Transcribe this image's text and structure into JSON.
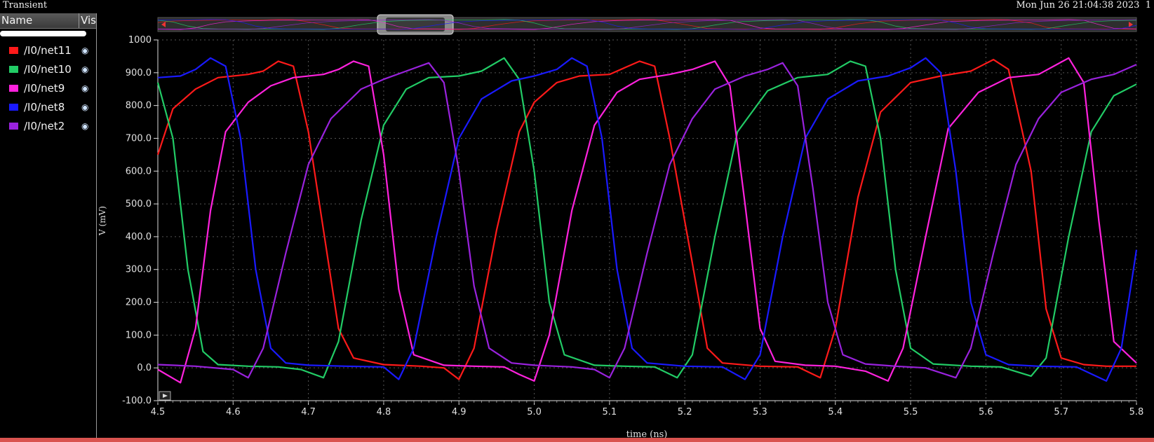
{
  "window": {
    "title": "Transient",
    "datetime": "Mon Jun 26 21:04:38 2023",
    "page_number": "1"
  },
  "panel": {
    "name_header": "Name",
    "vis_header": "Vis"
  },
  "legend": [
    {
      "label": "/I0/net11",
      "color": "#ff1a1a",
      "icon": "eye-icon"
    },
    {
      "label": "/I0/net10",
      "color": "#22cc66",
      "icon": "eye-icon"
    },
    {
      "label": "/I0/net9",
      "color": "#ff22dd",
      "icon": "eye-icon"
    },
    {
      "label": "/I0/net8",
      "color": "#1a1aff",
      "icon": "eye-icon"
    },
    {
      "label": "/I0/net2",
      "color": "#9922dd",
      "icon": "eye-icon"
    }
  ],
  "chart_data": {
    "type": "line",
    "xlabel": "time (ns)",
    "ylabel": "V (mV)",
    "xlim": [
      4.5,
      5.8
    ],
    "ylim": [
      -100,
      1000
    ],
    "x_ticks": [
      "4.5",
      "4.6",
      "4.7",
      "4.8",
      "4.9",
      "5.0",
      "5.1",
      "5.2",
      "5.3",
      "5.4",
      "5.5",
      "5.6",
      "5.7",
      "5.8"
    ],
    "y_ticks": [
      "1000",
      "900.0",
      "800.0",
      "700.0",
      "600.0",
      "500.0",
      "400.0",
      "300.0",
      "200.0",
      "100.0",
      "0.0",
      "-100.0"
    ],
    "grid": true,
    "series": [
      {
        "name": "/I0/net11",
        "color": "#ff1a1a",
        "points": [
          [
            4.5,
            650
          ],
          [
            4.52,
            790
          ],
          [
            4.55,
            850
          ],
          [
            4.58,
            885
          ],
          [
            4.62,
            895
          ],
          [
            4.64,
            905
          ],
          [
            4.66,
            935
          ],
          [
            4.68,
            920
          ],
          [
            4.7,
            720
          ],
          [
            4.72,
            420
          ],
          [
            4.74,
            120
          ],
          [
            4.76,
            30
          ],
          [
            4.8,
            10
          ],
          [
            4.85,
            5
          ],
          [
            4.88,
            0
          ],
          [
            4.9,
            -35
          ],
          [
            4.92,
            60
          ],
          [
            4.95,
            420
          ],
          [
            4.98,
            720
          ],
          [
            5.0,
            810
          ],
          [
            5.03,
            870
          ],
          [
            5.06,
            890
          ],
          [
            5.1,
            895
          ],
          [
            5.12,
            915
          ],
          [
            5.14,
            935
          ],
          [
            5.16,
            920
          ],
          [
            5.18,
            700
          ],
          [
            5.21,
            320
          ],
          [
            5.23,
            60
          ],
          [
            5.25,
            15
          ],
          [
            5.3,
            5
          ],
          [
            5.35,
            3
          ],
          [
            5.38,
            -30
          ],
          [
            5.4,
            120
          ],
          [
            5.43,
            520
          ],
          [
            5.46,
            780
          ],
          [
            5.5,
            870
          ],
          [
            5.54,
            890
          ],
          [
            5.58,
            905
          ],
          [
            5.61,
            940
          ],
          [
            5.63,
            910
          ],
          [
            5.66,
            600
          ],
          [
            5.68,
            180
          ],
          [
            5.7,
            30
          ],
          [
            5.73,
            10
          ],
          [
            5.76,
            5
          ],
          [
            5.8,
            5
          ]
        ]
      },
      {
        "name": "/I0/net10",
        "color": "#22cc66",
        "points": [
          [
            4.5,
            870
          ],
          [
            4.52,
            700
          ],
          [
            4.54,
            300
          ],
          [
            4.56,
            50
          ],
          [
            4.58,
            10
          ],
          [
            4.62,
            5
          ],
          [
            4.66,
            3
          ],
          [
            4.69,
            -5
          ],
          [
            4.72,
            -30
          ],
          [
            4.74,
            80
          ],
          [
            4.77,
            450
          ],
          [
            4.8,
            740
          ],
          [
            4.83,
            850
          ],
          [
            4.86,
            885
          ],
          [
            4.9,
            890
          ],
          [
            4.93,
            905
          ],
          [
            4.96,
            945
          ],
          [
            4.98,
            880
          ],
          [
            5.0,
            600
          ],
          [
            5.02,
            200
          ],
          [
            5.04,
            40
          ],
          [
            5.08,
            8
          ],
          [
            5.12,
            5
          ],
          [
            5.16,
            3
          ],
          [
            5.19,
            -30
          ],
          [
            5.21,
            40
          ],
          [
            5.24,
            400
          ],
          [
            5.27,
            720
          ],
          [
            5.31,
            845
          ],
          [
            5.35,
            885
          ],
          [
            5.39,
            895
          ],
          [
            5.42,
            935
          ],
          [
            5.44,
            920
          ],
          [
            5.46,
            700
          ],
          [
            5.48,
            300
          ],
          [
            5.5,
            60
          ],
          [
            5.53,
            12
          ],
          [
            5.58,
            5
          ],
          [
            5.62,
            3
          ],
          [
            5.66,
            -25
          ],
          [
            5.68,
            30
          ],
          [
            5.71,
            400
          ],
          [
            5.74,
            720
          ],
          [
            5.77,
            830
          ],
          [
            5.8,
            865
          ]
        ]
      },
      {
        "name": "/I0/net9",
        "color": "#ff22dd",
        "points": [
          [
            4.5,
            -5
          ],
          [
            4.53,
            -45
          ],
          [
            4.55,
            120
          ],
          [
            4.57,
            480
          ],
          [
            4.59,
            720
          ],
          [
            4.62,
            810
          ],
          [
            4.65,
            860
          ],
          [
            4.68,
            885
          ],
          [
            4.72,
            895
          ],
          [
            4.74,
            910
          ],
          [
            4.76,
            935
          ],
          [
            4.78,
            920
          ],
          [
            4.8,
            650
          ],
          [
            4.82,
            240
          ],
          [
            4.84,
            40
          ],
          [
            4.88,
            8
          ],
          [
            4.92,
            5
          ],
          [
            4.96,
            3
          ],
          [
            4.98,
            -20
          ],
          [
            5.0,
            -40
          ],
          [
            5.02,
            100
          ],
          [
            5.05,
            480
          ],
          [
            5.08,
            740
          ],
          [
            5.11,
            840
          ],
          [
            5.14,
            880
          ],
          [
            5.18,
            895
          ],
          [
            5.21,
            910
          ],
          [
            5.24,
            935
          ],
          [
            5.26,
            860
          ],
          [
            5.28,
            500
          ],
          [
            5.3,
            120
          ],
          [
            5.32,
            20
          ],
          [
            5.36,
            8
          ],
          [
            5.4,
            5
          ],
          [
            5.44,
            -10
          ],
          [
            5.47,
            -40
          ],
          [
            5.49,
            60
          ],
          [
            5.52,
            400
          ],
          [
            5.55,
            730
          ],
          [
            5.59,
            840
          ],
          [
            5.63,
            885
          ],
          [
            5.67,
            895
          ],
          [
            5.69,
            920
          ],
          [
            5.71,
            945
          ],
          [
            5.73,
            870
          ],
          [
            5.75,
            450
          ],
          [
            5.77,
            80
          ],
          [
            5.8,
            15
          ]
        ]
      },
      {
        "name": "/I0/net8",
        "color": "#1a1aff",
        "points": [
          [
            4.5,
            885
          ],
          [
            4.53,
            890
          ],
          [
            4.55,
            910
          ],
          [
            4.57,
            945
          ],
          [
            4.59,
            920
          ],
          [
            4.61,
            700
          ],
          [
            4.63,
            300
          ],
          [
            4.65,
            60
          ],
          [
            4.67,
            15
          ],
          [
            4.7,
            8
          ],
          [
            4.75,
            5
          ],
          [
            4.8,
            3
          ],
          [
            4.82,
            -35
          ],
          [
            4.84,
            60
          ],
          [
            4.87,
            400
          ],
          [
            4.9,
            700
          ],
          [
            4.93,
            820
          ],
          [
            4.97,
            875
          ],
          [
            5.0,
            890
          ],
          [
            5.03,
            910
          ],
          [
            5.05,
            945
          ],
          [
            5.07,
            920
          ],
          [
            5.09,
            700
          ],
          [
            5.11,
            300
          ],
          [
            5.13,
            60
          ],
          [
            5.15,
            15
          ],
          [
            5.2,
            5
          ],
          [
            5.25,
            3
          ],
          [
            5.28,
            -35
          ],
          [
            5.3,
            40
          ],
          [
            5.33,
            400
          ],
          [
            5.36,
            700
          ],
          [
            5.39,
            820
          ],
          [
            5.43,
            875
          ],
          [
            5.47,
            890
          ],
          [
            5.5,
            915
          ],
          [
            5.52,
            945
          ],
          [
            5.54,
            900
          ],
          [
            5.56,
            600
          ],
          [
            5.58,
            200
          ],
          [
            5.6,
            40
          ],
          [
            5.63,
            10
          ],
          [
            5.67,
            5
          ],
          [
            5.72,
            3
          ],
          [
            5.76,
            -40
          ],
          [
            5.78,
            60
          ],
          [
            5.8,
            360
          ]
        ]
      },
      {
        "name": "/I0/net2",
        "color": "#9922dd",
        "points": [
          [
            4.5,
            10
          ],
          [
            4.55,
            5
          ],
          [
            4.6,
            -5
          ],
          [
            4.62,
            -30
          ],
          [
            4.64,
            60
          ],
          [
            4.67,
            350
          ],
          [
            4.7,
            620
          ],
          [
            4.73,
            760
          ],
          [
            4.77,
            850
          ],
          [
            4.8,
            880
          ],
          [
            4.83,
            905
          ],
          [
            4.86,
            930
          ],
          [
            4.88,
            870
          ],
          [
            4.9,
            600
          ],
          [
            4.92,
            250
          ],
          [
            4.94,
            60
          ],
          [
            4.97,
            15
          ],
          [
            5.0,
            8
          ],
          [
            5.05,
            3
          ],
          [
            5.08,
            -5
          ],
          [
            5.1,
            -30
          ],
          [
            5.12,
            60
          ],
          [
            5.15,
            350
          ],
          [
            5.18,
            620
          ],
          [
            5.21,
            760
          ],
          [
            5.24,
            850
          ],
          [
            5.28,
            890
          ],
          [
            5.31,
            910
          ],
          [
            5.33,
            930
          ],
          [
            5.35,
            860
          ],
          [
            5.37,
            550
          ],
          [
            5.39,
            200
          ],
          [
            5.41,
            40
          ],
          [
            5.44,
            12
          ],
          [
            5.48,
            5
          ],
          [
            5.52,
            0
          ],
          [
            5.56,
            -30
          ],
          [
            5.58,
            60
          ],
          [
            5.61,
            350
          ],
          [
            5.64,
            620
          ],
          [
            5.67,
            760
          ],
          [
            5.7,
            840
          ],
          [
            5.74,
            880
          ],
          [
            5.77,
            895
          ],
          [
            5.8,
            925
          ]
        ]
      }
    ]
  }
}
